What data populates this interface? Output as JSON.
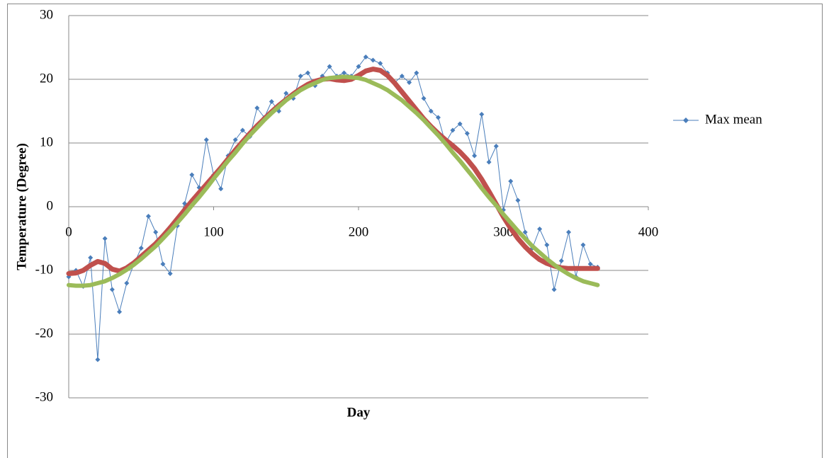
{
  "chart_data": {
    "type": "line",
    "x_label": "Day",
    "y_label": "Temperature (Degree)",
    "x": [
      0,
      5,
      10,
      15,
      20,
      25,
      30,
      35,
      40,
      45,
      50,
      55,
      60,
      65,
      70,
      75,
      80,
      85,
      90,
      95,
      100,
      105,
      110,
      115,
      120,
      125,
      130,
      135,
      140,
      145,
      150,
      155,
      160,
      165,
      170,
      175,
      180,
      185,
      190,
      195,
      200,
      205,
      210,
      215,
      220,
      225,
      230,
      235,
      240,
      245,
      250,
      255,
      260,
      265,
      270,
      275,
      280,
      285,
      290,
      295,
      300,
      305,
      310,
      315,
      320,
      325,
      330,
      335,
      340,
      345,
      350,
      355,
      360,
      365
    ],
    "series": [
      {
        "name": "Max mean",
        "color": "#4a7ebb",
        "marker": "diamond",
        "values": [
          -11,
          -10,
          -12.5,
          -8,
          -24,
          -5,
          -13,
          -16.5,
          -12,
          -9,
          -6.5,
          -1.5,
          -4,
          -9,
          -10.5,
          -3,
          0.5,
          5,
          3,
          10.5,
          5,
          2.8,
          8,
          10.5,
          12,
          11,
          15.5,
          14,
          16.5,
          15,
          17.8,
          17,
          20.5,
          21,
          19,
          20.5,
          22,
          20.5,
          21,
          20.5,
          22,
          23.5,
          23,
          22.5,
          21,
          19.5,
          20.5,
          19.5,
          21,
          17,
          15,
          14,
          10,
          12,
          13,
          11.5,
          8,
          14.5,
          7,
          9.5,
          -0.5,
          4,
          1,
          -4,
          -6.5,
          -3.5,
          -6,
          -13,
          -8.5,
          -4,
          -11,
          -6,
          -9,
          -9.5
        ]
      },
      {
        "color": "#c0504d",
        "values": [
          -10.5,
          -10.4,
          -10,
          -9.2,
          -8.6,
          -8.9,
          -9.8,
          -10.1,
          -9.6,
          -8.8,
          -7.8,
          -6.8,
          -5.8,
          -4.6,
          -3.3,
          -1.9,
          -0.5,
          0.9,
          2.2,
          3.5,
          4.8,
          6.1,
          7.5,
          8.9,
          10.2,
          11.5,
          12.7,
          13.8,
          14.9,
          15.9,
          16.8,
          17.7,
          18.5,
          19.2,
          19.7,
          20,
          20.1,
          19.9,
          19.8,
          20,
          20.6,
          21.3,
          21.6,
          21.4,
          20.6,
          19.4,
          18,
          16.6,
          15.2,
          13.8,
          12.6,
          11.5,
          10.5,
          9.6,
          8.6,
          7.4,
          6,
          4.3,
          2.4,
          0.4,
          -1.6,
          -3.4,
          -5,
          -6.3,
          -7.4,
          -8.3,
          -8.9,
          -9.3,
          -9.6,
          -9.7,
          -9.7,
          -9.7,
          -9.7,
          -9.7
        ]
      },
      {
        "color": "#9bbb59",
        "values": [
          -12.3,
          -12.4,
          -12.4,
          -12.3,
          -12,
          -11.7,
          -11.2,
          -10.6,
          -9.9,
          -9.1,
          -8.2,
          -7.2,
          -6.2,
          -5,
          -3.8,
          -2.5,
          -1.2,
          0.2,
          1.5,
          2.9,
          4.4,
          5.8,
          7.2,
          8.5,
          9.9,
          11.2,
          12.4,
          13.6,
          14.7,
          15.7,
          16.7,
          17.5,
          18.3,
          18.9,
          19.4,
          19.9,
          20.2,
          20.3,
          20.4,
          20.3,
          20.2,
          19.9,
          19.4,
          18.9,
          18.3,
          17.5,
          16.7,
          15.7,
          14.7,
          13.6,
          12.4,
          11.2,
          9.9,
          8.5,
          7.2,
          5.8,
          4.4,
          2.9,
          1.5,
          0.2,
          -1.2,
          -2.5,
          -3.8,
          -5,
          -6.2,
          -7.2,
          -8.2,
          -9.1,
          -9.9,
          -10.6,
          -11.2,
          -11.7,
          -12,
          -12.3
        ]
      }
    ],
    "xlim": [
      0,
      400
    ],
    "xticks": [
      0,
      100,
      200,
      300,
      400
    ],
    "ylim": [
      -30,
      30
    ],
    "yticks": [
      -30,
      -20,
      -10,
      0,
      10,
      20,
      30
    ],
    "grid": true,
    "legend": "right"
  }
}
